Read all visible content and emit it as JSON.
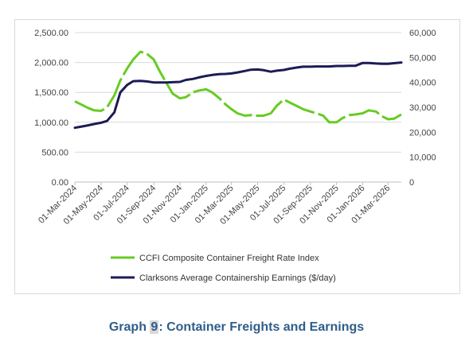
{
  "caption": {
    "prefix": "Graph ",
    "number": "9",
    "suffix": ": Container Freights and Earnings"
  },
  "chart_data": {
    "type": "line",
    "title": "",
    "x_ticks": [
      "01-Mar-2024",
      "01-May-2024",
      "01-Jul-2024",
      "01-Sep-2024",
      "01-Nov-2024",
      "01-Jan-2025",
      "01-Mar-2025",
      "01-May-2025",
      "01-Jul-2025",
      "01-Sep-2025",
      "01-Nov-2025",
      "01-Jan-2026",
      "01-Mar-2026"
    ],
    "xlim": [
      "2024-03-01",
      "2026-04-01"
    ],
    "y_left": {
      "ticks": [
        "0.00",
        "500.00",
        "1,000.00",
        "1,500.00",
        "2,000.00",
        "2,500.00"
      ],
      "lim": [
        0,
        2500
      ]
    },
    "y_right": {
      "ticks": [
        "0",
        "10,000",
        "20,000",
        "30,000",
        "40,000",
        "50,000",
        "60,000"
      ],
      "lim": [
        0,
        60000
      ]
    },
    "grid": "horizontal",
    "legend_position": "bottom",
    "series": [
      {
        "name": "CCFI Composite Container Freight Rate Index",
        "axis": "left",
        "color": "#66cc22",
        "style": "dashed",
        "points": [
          [
            "2024-03-01",
            1350
          ],
          [
            "2024-03-15",
            1300
          ],
          [
            "2024-04-01",
            1240
          ],
          [
            "2024-04-15",
            1200
          ],
          [
            "2024-05-01",
            1190
          ],
          [
            "2024-05-15",
            1250
          ],
          [
            "2024-06-01",
            1450
          ],
          [
            "2024-06-15",
            1700
          ],
          [
            "2024-07-01",
            1900
          ],
          [
            "2024-07-15",
            2050
          ],
          [
            "2024-08-01",
            2180
          ],
          [
            "2024-08-15",
            2150
          ],
          [
            "2024-09-01",
            2050
          ],
          [
            "2024-09-15",
            1850
          ],
          [
            "2024-10-01",
            1650
          ],
          [
            "2024-10-15",
            1480
          ],
          [
            "2024-11-01",
            1400
          ],
          [
            "2024-11-15",
            1420
          ],
          [
            "2024-12-01",
            1500
          ],
          [
            "2024-12-15",
            1530
          ],
          [
            "2025-01-01",
            1550
          ],
          [
            "2025-01-15",
            1500
          ],
          [
            "2025-02-01",
            1400
          ],
          [
            "2025-02-15",
            1300
          ],
          [
            "2025-03-01",
            1220
          ],
          [
            "2025-03-15",
            1150
          ],
          [
            "2025-04-01",
            1110
          ],
          [
            "2025-04-15",
            1120
          ],
          [
            "2025-05-01",
            1110
          ],
          [
            "2025-05-15",
            1110
          ],
          [
            "2025-06-01",
            1150
          ],
          [
            "2025-06-15",
            1280
          ],
          [
            "2025-07-01",
            1380
          ],
          [
            "2025-07-15",
            1330
          ],
          [
            "2025-08-01",
            1270
          ],
          [
            "2025-08-15",
            1220
          ],
          [
            "2025-09-01",
            1180
          ],
          [
            "2025-09-15",
            1150
          ],
          [
            "2025-10-01",
            1110
          ],
          [
            "2025-10-15",
            1000
          ],
          [
            "2025-11-01",
            1000
          ],
          [
            "2025-11-15",
            1070
          ],
          [
            "2025-12-01",
            1120
          ],
          [
            "2025-12-15",
            1130
          ],
          [
            "2026-01-01",
            1150
          ],
          [
            "2026-01-15",
            1200
          ],
          [
            "2026-02-01",
            1180
          ],
          [
            "2026-02-15",
            1100
          ],
          [
            "2026-03-01",
            1050
          ],
          [
            "2026-03-15",
            1060
          ],
          [
            "2026-04-01",
            1130
          ]
        ]
      },
      {
        "name": "Clarksons Average Containership Earnings ($/day)",
        "axis": "right",
        "color": "#1c1b55",
        "style": "solid",
        "points": [
          [
            "2024-03-01",
            21800
          ],
          [
            "2024-03-15",
            22200
          ],
          [
            "2024-04-01",
            22800
          ],
          [
            "2024-04-15",
            23300
          ],
          [
            "2024-05-01",
            23800
          ],
          [
            "2024-05-15",
            24500
          ],
          [
            "2024-06-01",
            28000
          ],
          [
            "2024-06-15",
            36000
          ],
          [
            "2024-07-01",
            39000
          ],
          [
            "2024-07-15",
            40500
          ],
          [
            "2024-08-01",
            40600
          ],
          [
            "2024-08-15",
            40400
          ],
          [
            "2024-09-01",
            40000
          ],
          [
            "2024-09-15",
            40000
          ],
          [
            "2024-10-01",
            40000
          ],
          [
            "2024-10-15",
            40100
          ],
          [
            "2024-11-01",
            40200
          ],
          [
            "2024-11-15",
            41000
          ],
          [
            "2024-12-01",
            41400
          ],
          [
            "2024-12-15",
            42000
          ],
          [
            "2025-01-01",
            42600
          ],
          [
            "2025-01-15",
            43000
          ],
          [
            "2025-02-01",
            43300
          ],
          [
            "2025-02-15",
            43400
          ],
          [
            "2025-03-01",
            43600
          ],
          [
            "2025-03-15",
            44000
          ],
          [
            "2025-04-01",
            44600
          ],
          [
            "2025-04-15",
            45100
          ],
          [
            "2025-05-01",
            45200
          ],
          [
            "2025-05-15",
            44900
          ],
          [
            "2025-06-01",
            44300
          ],
          [
            "2025-06-15",
            44700
          ],
          [
            "2025-07-01",
            45000
          ],
          [
            "2025-07-15",
            45500
          ],
          [
            "2025-08-01",
            46000
          ],
          [
            "2025-08-15",
            46300
          ],
          [
            "2025-09-01",
            46300
          ],
          [
            "2025-09-15",
            46400
          ],
          [
            "2025-10-01",
            46400
          ],
          [
            "2025-10-15",
            46400
          ],
          [
            "2025-11-01",
            46600
          ],
          [
            "2025-11-15",
            46600
          ],
          [
            "2025-12-01",
            46700
          ],
          [
            "2025-12-15",
            46700
          ],
          [
            "2026-01-01",
            47800
          ],
          [
            "2026-01-15",
            47800
          ],
          [
            "2026-02-01",
            47600
          ],
          [
            "2026-02-15",
            47500
          ],
          [
            "2026-03-01",
            47500
          ],
          [
            "2026-03-15",
            47700
          ],
          [
            "2026-04-01",
            48000
          ]
        ]
      }
    ]
  }
}
